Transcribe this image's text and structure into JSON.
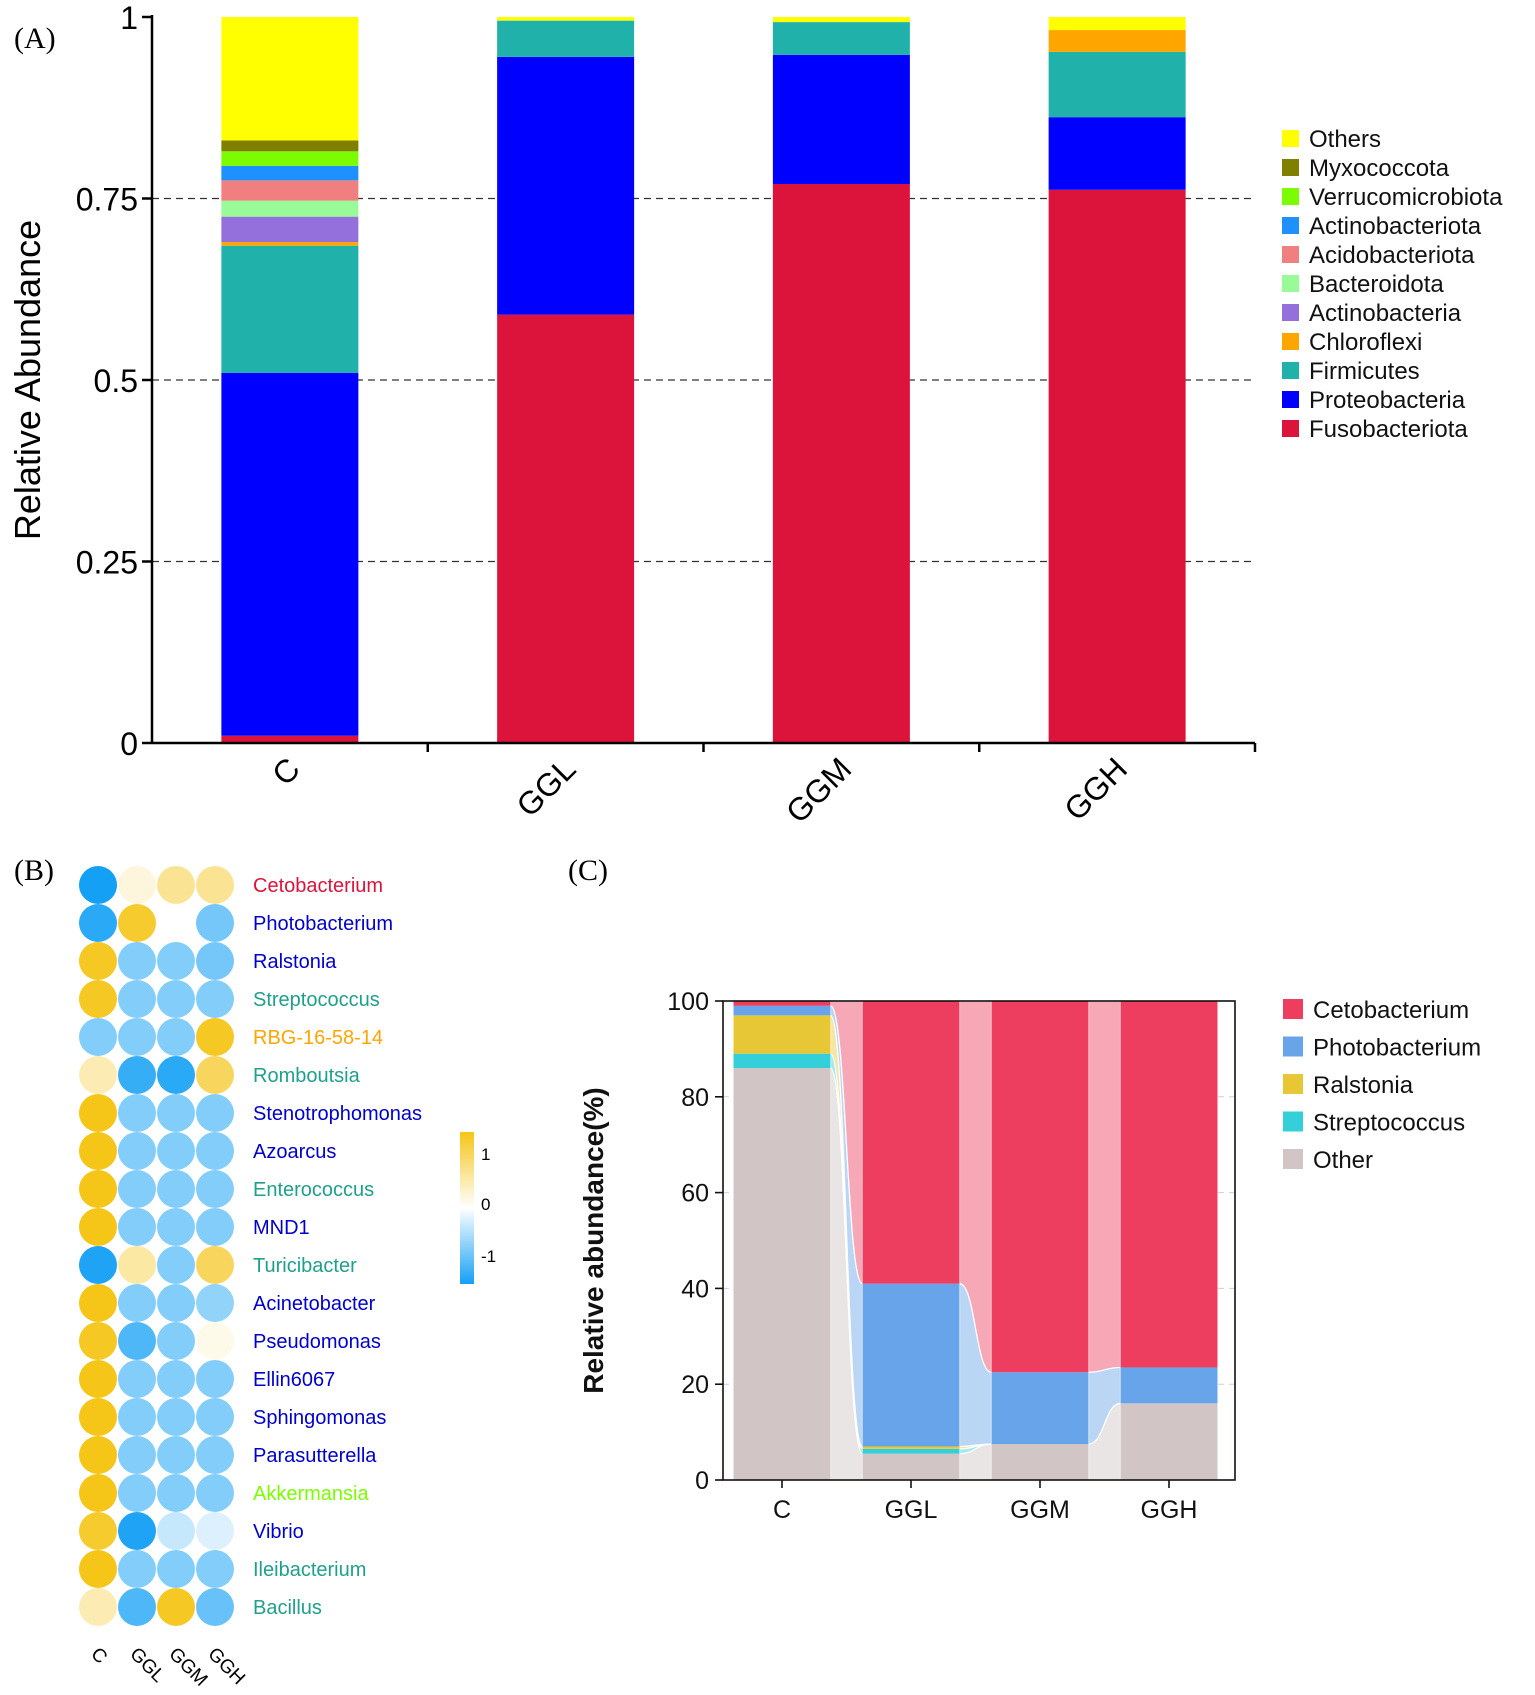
{
  "chart_data": [
    {
      "panel": "(A)",
      "type": "bar",
      "stacked": true,
      "ylabel": "Relative Abundance",
      "ylim": [
        0,
        1
      ],
      "yticks": [
        "0",
        "0.25",
        "0.5",
        "0.75",
        "1"
      ],
      "categories": [
        "C",
        "GGL",
        "GGM",
        "GGH"
      ],
      "grid": "dashed",
      "legend_position": "right",
      "series": [
        {
          "name": "Fusobacteriota",
          "color": "#dc143c",
          "values": [
            0.01,
            0.59,
            0.77,
            0.762
          ]
        },
        {
          "name": "Proteobacteria",
          "color": "#0000ff",
          "values": [
            0.5,
            0.355,
            0.178,
            0.1
          ]
        },
        {
          "name": "Firmicutes",
          "color": "#20b2aa",
          "values": [
            0.175,
            0.05,
            0.045,
            0.09
          ]
        },
        {
          "name": "Chloroflexi",
          "color": "#ffa500",
          "values": [
            0.005,
            0.0,
            0.0,
            0.03
          ]
        },
        {
          "name": "Actinobacteria",
          "color": "#9370db",
          "values": [
            0.035,
            0.0,
            0.0,
            0.0
          ]
        },
        {
          "name": "Bacteroidota",
          "color": "#98fb98",
          "values": [
            0.022,
            0.0,
            0.0,
            0.0
          ]
        },
        {
          "name": "Acidobacteriota",
          "color": "#f08080",
          "values": [
            0.028,
            0.0,
            0.0,
            0.0
          ]
        },
        {
          "name": "Actinobacteriota",
          "color": "#1e90ff",
          "values": [
            0.02,
            0.0,
            0.0,
            0.0
          ]
        },
        {
          "name": "Verrucomicrobiota",
          "color": "#7cfc00",
          "values": [
            0.02,
            0.0,
            0.0,
            0.0
          ]
        },
        {
          "name": "Myxococcota",
          "color": "#808000",
          "values": [
            0.015,
            0.0,
            0.0,
            0.0
          ]
        },
        {
          "name": "Others",
          "color": "#ffff00",
          "values": [
            0.17,
            0.005,
            0.007,
            0.018
          ]
        }
      ]
    },
    {
      "panel": "(B)",
      "type": "heatmap",
      "columns": [
        "C",
        "GGL",
        "GGM",
        "GGH"
      ],
      "colorbar": {
        "ticks": [
          "1",
          "0",
          "-1"
        ],
        "range": [
          -1.5,
          1.5
        ]
      },
      "rows": [
        {
          "name": "Cetobacterium",
          "color": "#dc143c",
          "values": [
            -1.5,
            0.1,
            0.5,
            0.5
          ]
        },
        {
          "name": "Photobacterium",
          "color": "#0000cd",
          "values": [
            -1.3,
            1.3,
            0.0,
            -0.7
          ]
        },
        {
          "name": "Ralstonia",
          "color": "#0000cd",
          "values": [
            1.4,
            -0.6,
            -0.6,
            -0.7
          ]
        },
        {
          "name": "Streptococcus",
          "color": "#20a08c",
          "values": [
            1.4,
            -0.6,
            -0.6,
            -0.6
          ]
        },
        {
          "name": "RBG-16-58-14",
          "color": "#ffa500",
          "values": [
            -0.6,
            -0.6,
            -0.6,
            1.4
          ]
        },
        {
          "name": "Romboutsia",
          "color": "#20a08c",
          "values": [
            0.3,
            -1.2,
            -1.3,
            0.9
          ]
        },
        {
          "name": "Stenotrophomonas",
          "color": "#0000cd",
          "values": [
            1.5,
            -0.6,
            -0.6,
            -0.6
          ]
        },
        {
          "name": "Azoarcus",
          "color": "#0000cd",
          "values": [
            1.5,
            -0.6,
            -0.6,
            -0.6
          ]
        },
        {
          "name": "Enterococcus",
          "color": "#20a08c",
          "values": [
            1.5,
            -0.6,
            -0.6,
            -0.6
          ]
        },
        {
          "name": "MND1",
          "color": "#0000cd",
          "values": [
            1.5,
            -0.6,
            -0.6,
            -0.6
          ]
        },
        {
          "name": "Turicibacter",
          "color": "#20a08c",
          "values": [
            -1.4,
            0.4,
            -0.6,
            0.9
          ]
        },
        {
          "name": "Acinetobacter",
          "color": "#0000cd",
          "values": [
            1.5,
            -0.6,
            -0.6,
            -0.5
          ]
        },
        {
          "name": "Pseudomonas",
          "color": "#0000cd",
          "values": [
            1.4,
            -1.0,
            -0.6,
            0.05
          ]
        },
        {
          "name": "Ellin6067",
          "color": "#0000cd",
          "values": [
            1.5,
            -0.6,
            -0.6,
            -0.6
          ]
        },
        {
          "name": "Sphingomonas",
          "color": "#0000cd",
          "values": [
            1.5,
            -0.6,
            -0.6,
            -0.6
          ]
        },
        {
          "name": "Parasutterella",
          "color": "#0000cd",
          "values": [
            1.5,
            -0.6,
            -0.6,
            -0.6
          ]
        },
        {
          "name": "Akkermansia",
          "color": "#7cfc00",
          "values": [
            1.5,
            -0.6,
            -0.6,
            -0.6
          ]
        },
        {
          "name": "Vibrio",
          "color": "#0000cd",
          "values": [
            1.3,
            -1.4,
            -0.2,
            -0.1
          ]
        },
        {
          "name": "Ileibacterium",
          "color": "#20a08c",
          "values": [
            1.5,
            -0.6,
            -0.6,
            -0.6
          ]
        },
        {
          "name": "Bacillus",
          "color": "#20a08c",
          "values": [
            0.3,
            -1.0,
            1.4,
            -0.8
          ]
        }
      ]
    },
    {
      "panel": "(C)",
      "type": "area",
      "stacked": true,
      "ylabel": "Relative abundance(%)",
      "ylim": [
        0,
        100
      ],
      "yticks": [
        "0",
        "20",
        "40",
        "60",
        "80",
        "100"
      ],
      "categories": [
        "C",
        "GGL",
        "GGM",
        "GGH"
      ],
      "legend_position": "top-right",
      "series": [
        {
          "name": "Other",
          "color": "#d1c6c5",
          "values": [
            86,
            5.5,
            7.5,
            16
          ]
        },
        {
          "name": "Streptococcus",
          "color": "#34cfd8",
          "values": [
            3,
            1,
            0,
            0
          ]
        },
        {
          "name": "Ralstonia",
          "color": "#e8c736",
          "values": [
            8,
            0.5,
            0,
            0
          ]
        },
        {
          "name": "Photobacterium",
          "color": "#67a4e9",
          "values": [
            2,
            34,
            15,
            7.5
          ]
        },
        {
          "name": "Cetobacterium",
          "color": "#ee3e5f",
          "values": [
            1,
            59,
            77.5,
            76.5
          ]
        }
      ]
    }
  ],
  "panel_labels": {
    "a": "(A)",
    "b": "(B)",
    "c": "(C)"
  }
}
